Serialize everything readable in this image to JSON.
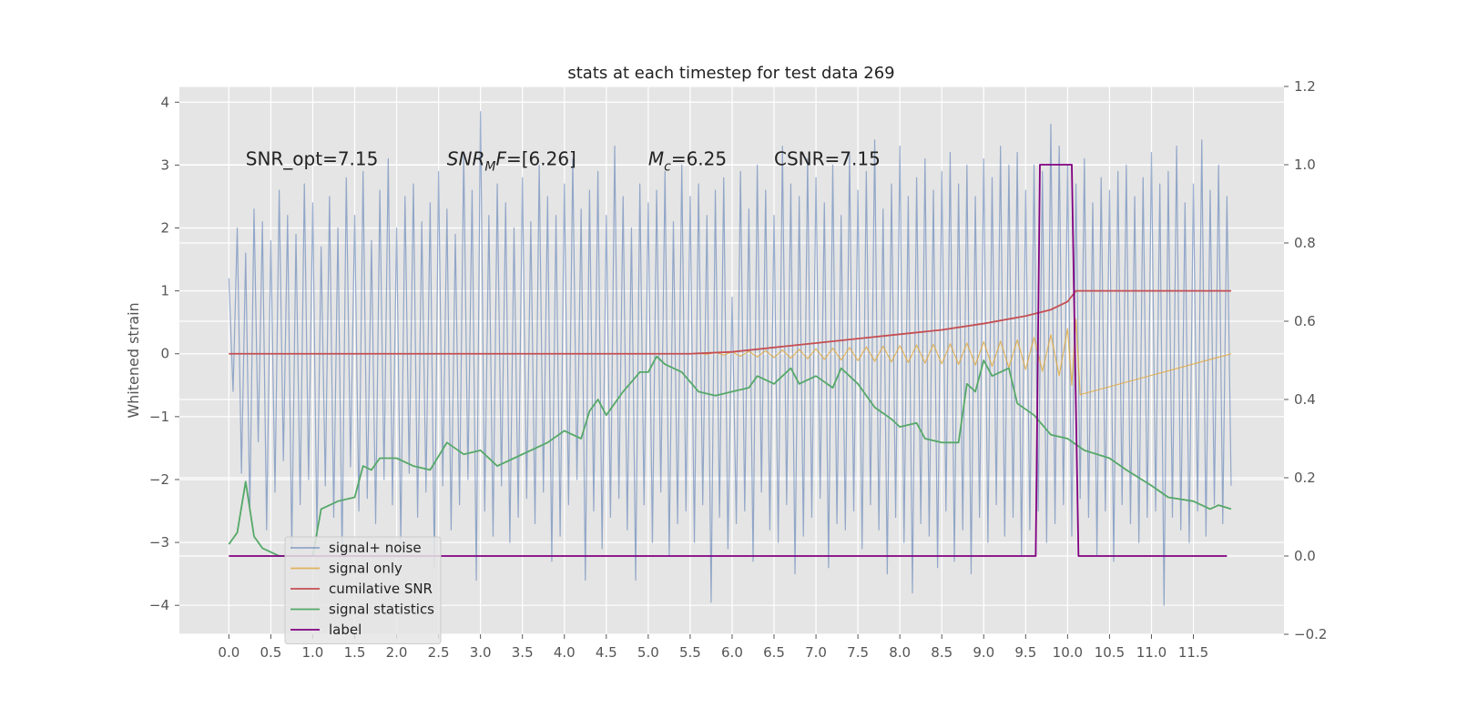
{
  "chart_data": {
    "type": "line",
    "title": "stats at each timestep for test data 269",
    "ylabel": "Whitened strain",
    "xlim": [
      -0.59,
      12.58
    ],
    "ylim": [
      -4.46,
      4.25
    ],
    "y2lim": [
      -0.2,
      1.2
    ],
    "grid": true,
    "legend": "lower left",
    "xticks": [
      {
        "value": 0,
        "label": "0.0"
      },
      0.5,
      {
        "value": 1,
        "label": "1.0"
      },
      1.5,
      {
        "value": 2,
        "label": "2.0"
      },
      2.5,
      {
        "value": 3,
        "label": "3.0"
      },
      3.5,
      {
        "value": 4,
        "label": "4.0"
      },
      4.5,
      {
        "value": 5,
        "label": "5.0"
      },
      5.5,
      {
        "value": 6,
        "label": "6.0"
      },
      6.5,
      {
        "value": 7,
        "label": "7.0"
      },
      7.5,
      {
        "value": 8,
        "label": "8.0"
      },
      8.5,
      {
        "value": 9,
        "label": "9.0"
      },
      9.5,
      {
        "value": 10,
        "label": "10.0"
      },
      10.5,
      {
        "value": 11,
        "label": "11.0"
      },
      11.5
    ],
    "yticks": [
      {
        "value": -4,
        "label": "−4"
      },
      {
        "value": -3,
        "label": "−3"
      },
      {
        "value": -2,
        "label": "−2"
      },
      {
        "value": -1,
        "label": "−1"
      },
      0,
      1,
      2,
      3,
      4
    ],
    "y2ticks": [
      {
        "value": -0.2,
        "label": "−0.2"
      },
      {
        "value": 0,
        "label": "0.0"
      },
      0.2,
      0.4,
      0.6,
      0.8,
      {
        "value": 1,
        "label": "1.0"
      },
      1.2
    ],
    "annotations": [
      {
        "x": 0.2,
        "y": 3,
        "parts": [
          {
            "text": "SNR_opt=7.15"
          }
        ]
      },
      {
        "x": 2.6,
        "y": 3,
        "parts": [
          {
            "text": "SNR",
            "italic": true
          },
          {
            "text": "M",
            "italic": true,
            "sub": true
          },
          {
            "text": "F",
            "italic": true
          },
          {
            "text": "=[6.26]"
          }
        ]
      },
      {
        "x": 5.0,
        "y": 3,
        "parts": [
          {
            "text": "M",
            "italic": true
          },
          {
            "text": "c",
            "italic": true,
            "sub": true
          },
          {
            "text": "=6.25"
          }
        ]
      },
      {
        "x": 6.5,
        "y": 3,
        "parts": [
          {
            "text": "CSNR=7.15"
          }
        ]
      }
    ],
    "series": [
      {
        "name": "signal+ noise",
        "color": "#4c72b0",
        "alpha": 0.55,
        "axis": "y",
        "x": [
          0,
          0.05,
          0.1,
          0.15,
          0.2,
          0.25,
          0.3,
          0.35,
          0.4,
          0.45,
          0.5,
          0.55,
          0.6,
          0.65,
          0.7,
          0.75,
          0.8,
          0.85,
          0.9,
          0.95,
          1,
          1.05,
          1.1,
          1.15,
          1.2,
          1.25,
          1.3,
          1.35,
          1.4,
          1.45,
          1.5,
          1.55,
          1.6,
          1.65,
          1.7,
          1.75,
          1.8,
          1.85,
          1.9,
          1.95,
          2,
          2.05,
          2.1,
          2.15,
          2.2,
          2.25,
          2.3,
          2.35,
          2.4,
          2.45,
          2.5,
          2.55,
          2.6,
          2.65,
          2.7,
          2.75,
          2.8,
          2.85,
          2.9,
          2.95,
          3,
          3.05,
          3.1,
          3.15,
          3.2,
          3.25,
          3.3,
          3.35,
          3.4,
          3.45,
          3.5,
          3.55,
          3.6,
          3.65,
          3.7,
          3.75,
          3.8,
          3.85,
          3.9,
          3.95,
          4,
          4.05,
          4.1,
          4.15,
          4.2,
          4.25,
          4.3,
          4.35,
          4.4,
          4.45,
          4.5,
          4.55,
          4.6,
          4.65,
          4.7,
          4.75,
          4.8,
          4.85,
          4.9,
          4.95,
          5,
          5.05,
          5.1,
          5.15,
          5.2,
          5.25,
          5.3,
          5.35,
          5.4,
          5.45,
          5.5,
          5.55,
          5.6,
          5.65,
          5.7,
          5.75,
          5.8,
          5.85,
          5.9,
          5.95,
          6,
          6.05,
          6.1,
          6.15,
          6.2,
          6.25,
          6.3,
          6.35,
          6.4,
          6.45,
          6.5,
          6.55,
          6.6,
          6.65,
          6.7,
          6.75,
          6.8,
          6.85,
          6.9,
          6.95,
          7,
          7.05,
          7.1,
          7.15,
          7.2,
          7.25,
          7.3,
          7.35,
          7.4,
          7.45,
          7.5,
          7.55,
          7.6,
          7.65,
          7.7,
          7.75,
          7.8,
          7.85,
          7.9,
          7.95,
          8,
          8.05,
          8.1,
          8.15,
          8.2,
          8.25,
          8.3,
          8.35,
          8.4,
          8.45,
          8.5,
          8.55,
          8.6,
          8.65,
          8.7,
          8.75,
          8.8,
          8.85,
          8.9,
          8.95,
          9,
          9.05,
          9.1,
          9.15,
          9.2,
          9.25,
          9.3,
          9.35,
          9.4,
          9.45,
          9.5,
          9.55,
          9.6,
          9.65,
          9.7,
          9.75,
          9.8,
          9.85,
          9.9,
          9.95,
          10,
          10.05,
          10.1,
          10.15,
          10.2,
          10.25,
          10.3,
          10.35,
          10.4,
          10.45,
          10.5,
          10.55,
          10.6,
          10.65,
          10.7,
          10.75,
          10.8,
          10.85,
          10.9,
          10.95,
          11,
          11.05,
          11.1,
          11.15,
          11.2,
          11.25,
          11.3,
          11.35,
          11.4,
          11.45,
          11.5,
          11.55,
          11.6,
          11.65,
          11.7,
          11.75,
          11.8,
          11.85,
          11.9,
          11.95
        ],
        "values": [
          1.2,
          -0.6,
          2.0,
          -1.9,
          1.6,
          -2.5,
          2.3,
          -1.4,
          2.1,
          -2.8,
          1.8,
          -2.2,
          2.6,
          -1.7,
          2.2,
          -3.1,
          1.9,
          -2.4,
          2.7,
          -2.0,
          2.4,
          -2.9,
          1.7,
          -2.1,
          2.5,
          -2.6,
          2.0,
          -3.2,
          2.8,
          -1.8,
          2.2,
          -2.5,
          2.9,
          -2.3,
          1.8,
          -2.7,
          2.6,
          -2.0,
          3.1,
          -2.4,
          2.0,
          -3.0,
          2.5,
          -1.9,
          2.7,
          -2.6,
          2.1,
          -2.2,
          2.4,
          -3.4,
          2.9,
          -2.1,
          2.3,
          -2.8,
          1.9,
          -2.4,
          3.2,
          -2.0,
          2.6,
          -3.6,
          3.85,
          -2.5,
          2.2,
          -2.9,
          2.7,
          -2.1,
          2.4,
          -3.0,
          2.0,
          -2.6,
          2.8,
          -2.3,
          2.1,
          -2.7,
          3.0,
          -2.2,
          2.5,
          -3.3,
          2.2,
          -2.9,
          2.7,
          -2.4,
          3.1,
          -2.0,
          2.3,
          -3.6,
          2.6,
          -2.5,
          2.9,
          -3.1,
          2.2,
          -2.6,
          3.3,
          -2.3,
          2.5,
          -2.8,
          2.0,
          -3.6,
          2.7,
          -2.4,
          2.4,
          -3.0,
          2.6,
          -2.2,
          2.9,
          -3.2,
          2.1,
          -2.7,
          3.0,
          -2.5,
          2.5,
          -3.0,
          2.7,
          -2.4,
          2.2,
          -3.95,
          2.6,
          -2.6,
          2.8,
          -3.1,
          0.9,
          -2.7,
          2.9,
          -2.5,
          2.3,
          -3.3,
          3.0,
          -2.2,
          2.6,
          -2.8,
          2.2,
          -3.0,
          3.3,
          -2.4,
          2.7,
          -3.5,
          2.5,
          -2.9,
          3.1,
          -2.6,
          2.8,
          -2.3,
          2.4,
          -3.4,
          3.0,
          -2.7,
          2.2,
          -2.8,
          3.2,
          -2.5,
          2.6,
          -3.1,
          2.9,
          -2.4,
          3.4,
          -2.8,
          2.3,
          -3.5,
          2.7,
          -2.6,
          3.3,
          -3.0,
          2.5,
          -3.8,
          2.8,
          -2.7,
          3.1,
          -2.9,
          2.6,
          -3.4,
          2.9,
          -2.5,
          3.2,
          -3.3,
          2.7,
          -2.8,
          3.0,
          -3.5,
          2.5,
          -2.6,
          3.1,
          -3.0,
          2.8,
          -2.4,
          3.3,
          -2.9,
          3.0,
          -2.6,
          3.2,
          -3.2,
          2.6,
          -2.8,
          3.0,
          -2.5,
          2.9,
          -3.0,
          3.65,
          -2.7,
          3.3,
          -2.4,
          3.0,
          -2.9,
          2.7,
          -2.3,
          3.1,
          -2.6,
          2.4,
          -3.2,
          2.8,
          -2.5,
          2.6,
          -3.3,
          2.9,
          -2.4,
          3.0,
          -2.7,
          2.5,
          -3.0,
          2.8,
          -2.6,
          3.2,
          -2.5,
          2.7,
          -4.0,
          2.9,
          -2.6,
          3.3,
          -2.8,
          2.4,
          -3.0,
          2.7,
          -2.5,
          3.4,
          -2.9,
          2.6,
          -2.4,
          3.0,
          -2.7,
          2.5,
          -2.1
        ]
      },
      {
        "name": "signal only",
        "color": "#e0a83c",
        "alpha": 0.8,
        "axis": "y",
        "x": [
          0,
          5.5,
          5.6,
          5.7,
          5.8,
          5.9,
          6.0,
          6.1,
          6.2,
          6.3,
          6.4,
          6.5,
          6.6,
          6.7,
          6.8,
          6.9,
          7.0,
          7.1,
          7.2,
          7.3,
          7.4,
          7.5,
          7.6,
          7.7,
          7.8,
          7.9,
          8.0,
          8.1,
          8.2,
          8.3,
          8.4,
          8.5,
          8.6,
          8.7,
          8.8,
          8.9,
          9.0,
          9.1,
          9.2,
          9.3,
          9.4,
          9.5,
          9.6,
          9.7,
          9.8,
          9.9,
          10.0,
          10.05,
          10.1,
          10.15,
          11.95
        ],
        "values": [
          0,
          0,
          0.01,
          -0.01,
          0.02,
          -0.02,
          0.03,
          -0.04,
          0.04,
          -0.05,
          0.05,
          -0.06,
          0.06,
          -0.07,
          0.07,
          -0.08,
          0.08,
          -0.09,
          0.09,
          -0.1,
          0.1,
          -0.11,
          0.11,
          -0.12,
          0.12,
          -0.13,
          0.13,
          -0.14,
          0.14,
          -0.15,
          0.15,
          -0.16,
          0.16,
          -0.17,
          0.17,
          -0.18,
          0.19,
          -0.2,
          0.2,
          -0.22,
          0.22,
          -0.25,
          0.26,
          -0.28,
          0.3,
          -0.35,
          0.4,
          -0.5,
          0.55,
          -0.65,
          0
        ]
      },
      {
        "name": "cumilative SNR",
        "color": "#c44e52",
        "axis": "y",
        "x": [
          0,
          5.5,
          6.0,
          6.5,
          7.0,
          7.5,
          8.0,
          8.5,
          9.0,
          9.5,
          9.8,
          10.0,
          10.1,
          11.95
        ],
        "values": [
          0,
          0,
          0.03,
          0.1,
          0.17,
          0.24,
          0.31,
          0.38,
          0.48,
          0.6,
          0.7,
          0.83,
          1.0,
          1.0
        ]
      },
      {
        "name": "signal statistics",
        "color": "#55a868",
        "axis": "y2",
        "x": [
          0,
          0.1,
          0.2,
          0.3,
          0.4,
          0.5,
          0.6,
          1.0,
          1.1,
          1.3,
          1.5,
          1.6,
          1.7,
          1.8,
          2.0,
          2.2,
          2.4,
          2.6,
          2.8,
          3.0,
          3.2,
          3.4,
          3.6,
          3.8,
          4.0,
          4.2,
          4.3,
          4.4,
          4.5,
          4.7,
          4.9,
          5.0,
          5.1,
          5.2,
          5.4,
          5.6,
          5.8,
          6.0,
          6.2,
          6.3,
          6.5,
          6.7,
          6.8,
          7.0,
          7.2,
          7.3,
          7.5,
          7.7,
          7.9,
          8.0,
          8.2,
          8.3,
          8.5,
          8.7,
          8.8,
          8.9,
          9.0,
          9.1,
          9.3,
          9.4,
          9.6,
          9.8,
          10.0,
          10.2,
          10.5,
          10.7,
          11.0,
          11.2,
          11.5,
          11.7,
          11.8,
          11.95
        ],
        "values": [
          0.03,
          0.06,
          0.19,
          0.05,
          0.02,
          0.01,
          0,
          0,
          0.12,
          0.14,
          0.15,
          0.23,
          0.22,
          0.25,
          0.25,
          0.23,
          0.22,
          0.29,
          0.26,
          0.27,
          0.23,
          0.25,
          0.27,
          0.29,
          0.32,
          0.3,
          0.37,
          0.4,
          0.36,
          0.42,
          0.47,
          0.47,
          0.51,
          0.49,
          0.47,
          0.42,
          0.41,
          0.42,
          0.43,
          0.46,
          0.44,
          0.48,
          0.44,
          0.46,
          0.43,
          0.48,
          0.44,
          0.38,
          0.35,
          0.33,
          0.34,
          0.3,
          0.29,
          0.29,
          0.44,
          0.42,
          0.5,
          0.46,
          0.48,
          0.39,
          0.36,
          0.31,
          0.3,
          0.27,
          0.25,
          0.22,
          0.18,
          0.15,
          0.14,
          0.12,
          0.13,
          0.12
        ]
      },
      {
        "name": "label",
        "color": "#800080",
        "axis": "y2",
        "x": [
          0,
          9.62,
          9.67,
          10.05,
          10.13,
          11.9
        ],
        "values": [
          0,
          0,
          1,
          1,
          0,
          0
        ]
      }
    ]
  }
}
